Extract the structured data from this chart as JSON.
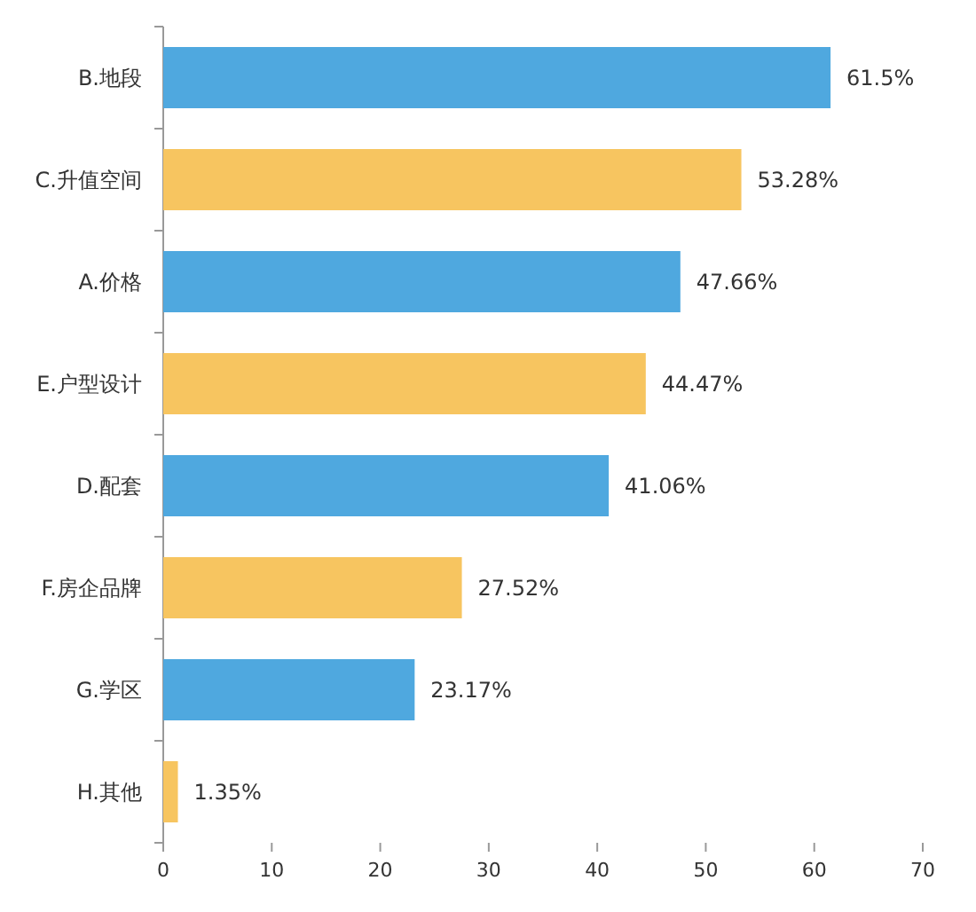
{
  "chart_data": {
    "type": "bar",
    "orientation": "horizontal",
    "categories": [
      "B.地段",
      "C.升值空间",
      "A.价格",
      "E.户型设计",
      "D.配套",
      "F.房企品牌",
      "G.学区",
      "H.其他"
    ],
    "values": [
      61.5,
      53.28,
      47.66,
      44.47,
      41.06,
      27.52,
      23.17,
      1.35
    ],
    "value_labels": [
      "61.5%",
      "53.28%",
      "47.66%",
      "44.47%",
      "41.06%",
      "27.52%",
      "23.17%",
      "1.35%"
    ],
    "colors": [
      "#4fa8df",
      "#f7c560",
      "#4fa8df",
      "#f7c560",
      "#4fa8df",
      "#f7c560",
      "#4fa8df",
      "#f7c560"
    ],
    "xlim": [
      0,
      70
    ],
    "xticks": [
      0,
      10,
      20,
      30,
      40,
      50,
      60,
      70
    ]
  }
}
